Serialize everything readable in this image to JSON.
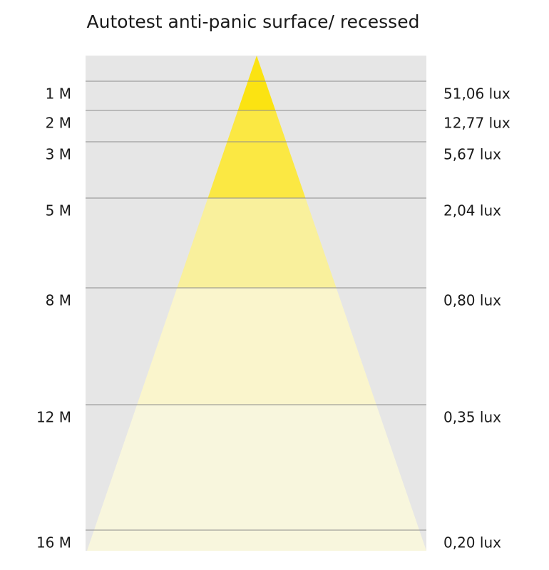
{
  "title": "Autotest anti-panic surface/ recessed",
  "rows": [
    {
      "distance": "1 M",
      "lux": "51,06 lux"
    },
    {
      "distance": "2 M",
      "lux": "12,77 lux"
    },
    {
      "distance": "3 M",
      "lux": "5,67 lux"
    },
    {
      "distance": "5 M",
      "lux": "2,04 lux"
    },
    {
      "distance": "8 M",
      "lux": "0,80 lux"
    },
    {
      "distance": "12 M",
      "lux": "0,35 lux"
    },
    {
      "distance": "16 M",
      "lux": "0,20 lux"
    }
  ]
}
